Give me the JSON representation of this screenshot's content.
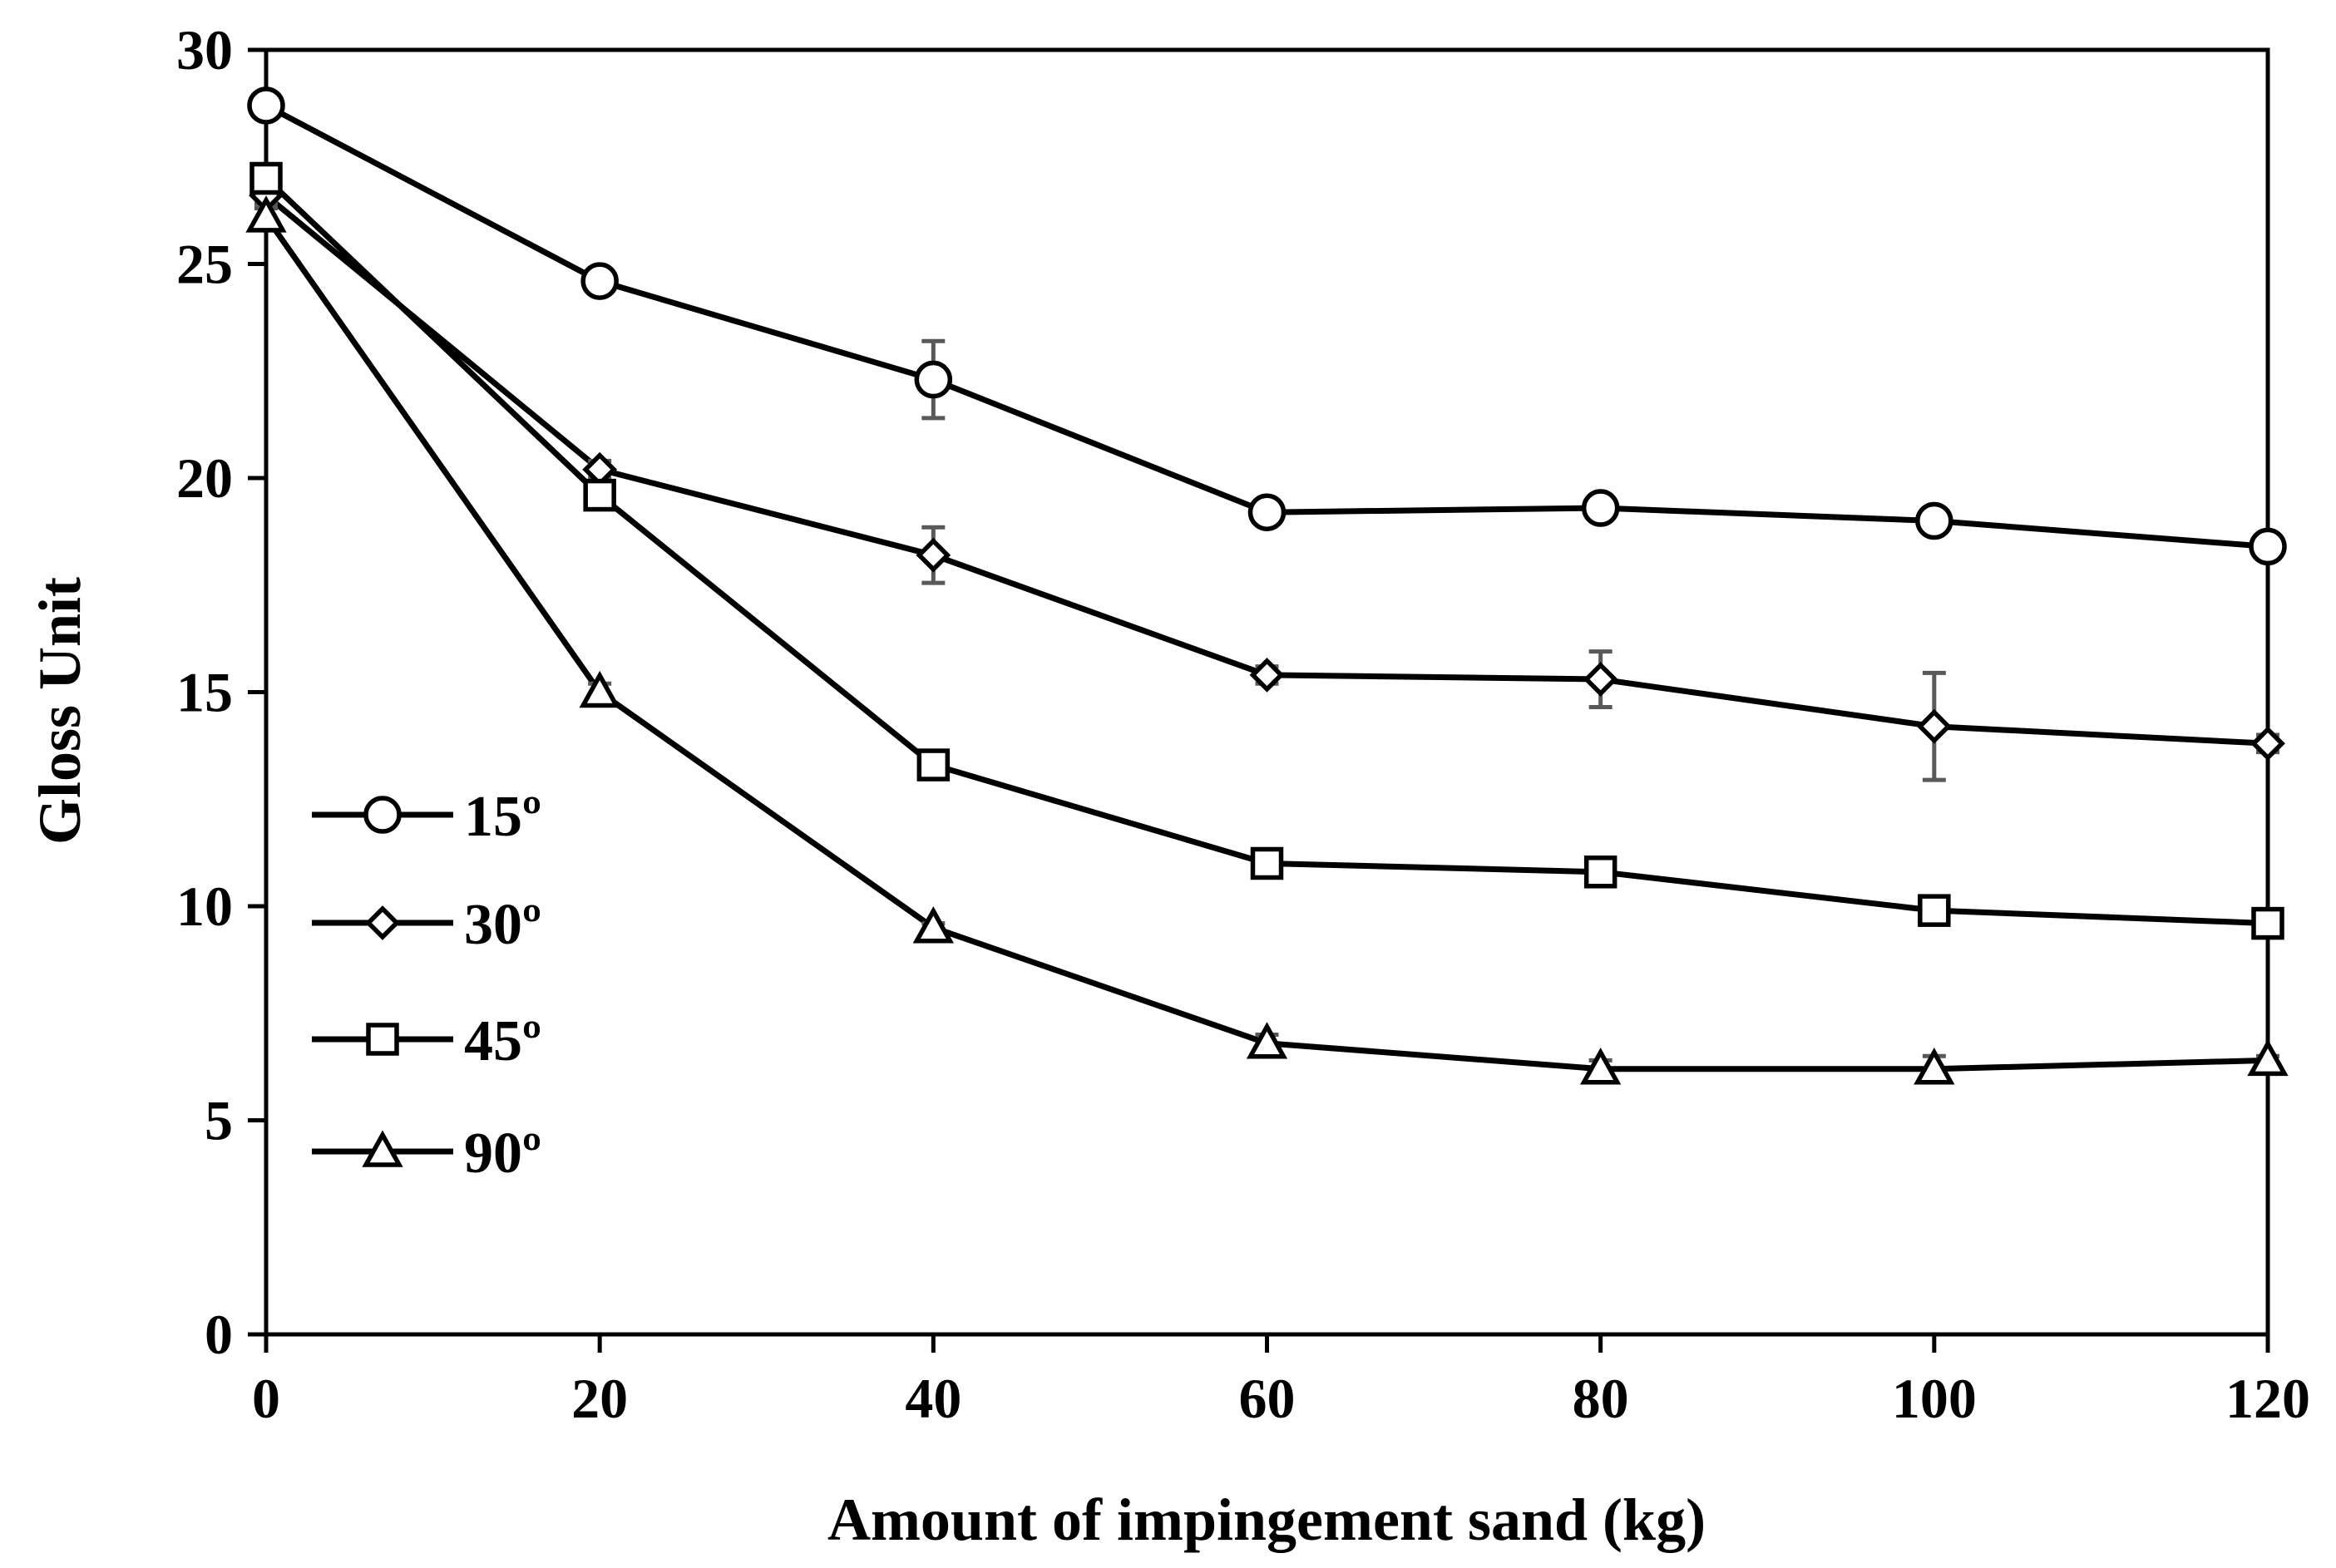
{
  "chart_data": {
    "type": "line",
    "title": "",
    "xlabel": "Amount of impingement sand (kg)",
    "ylabel": "Gloss Unit",
    "x": [
      0,
      20,
      40,
      60,
      80,
      100,
      120
    ],
    "xlim": [
      0,
      120
    ],
    "ylim": [
      0,
      30
    ],
    "xticks": [
      "0",
      "20",
      "40",
      "60",
      "80",
      "100",
      "120"
    ],
    "yticks": [
      "0",
      "5",
      "10",
      "15",
      "20",
      "25",
      "30"
    ],
    "grid": false,
    "legend_position": "left, lower-middle",
    "series": [
      {
        "name": "15º",
        "marker": "circle",
        "values": [
          28.7,
          24.6,
          22.3,
          19.2,
          19.3,
          19.0,
          18.4
        ],
        "errors": [
          0.0,
          0.2,
          0.9,
          0.2,
          0.2,
          0.2,
          0.1
        ]
      },
      {
        "name": "30º",
        "marker": "diamond",
        "values": [
          26.6,
          20.2,
          18.2,
          15.4,
          15.3,
          14.2,
          13.8
        ],
        "errors": [
          0.2,
          0.2,
          0.65,
          0.2,
          0.65,
          1.25,
          0.2
        ]
      },
      {
        "name": "45º",
        "marker": "square",
        "values": [
          27.0,
          19.6,
          13.3,
          11.0,
          10.8,
          9.9,
          9.6
        ],
        "errors": [
          0.2,
          0.2,
          0.2,
          0.2,
          0.2,
          0.2,
          0.1
        ]
      },
      {
        "name": "90º",
        "marker": "triangle",
        "values": [
          26.1,
          15.0,
          9.5,
          6.8,
          6.2,
          6.2,
          6.4
        ],
        "errors": [
          0.2,
          0.2,
          0.1,
          0.2,
          0.2,
          0.3,
          0.1
        ]
      }
    ]
  }
}
